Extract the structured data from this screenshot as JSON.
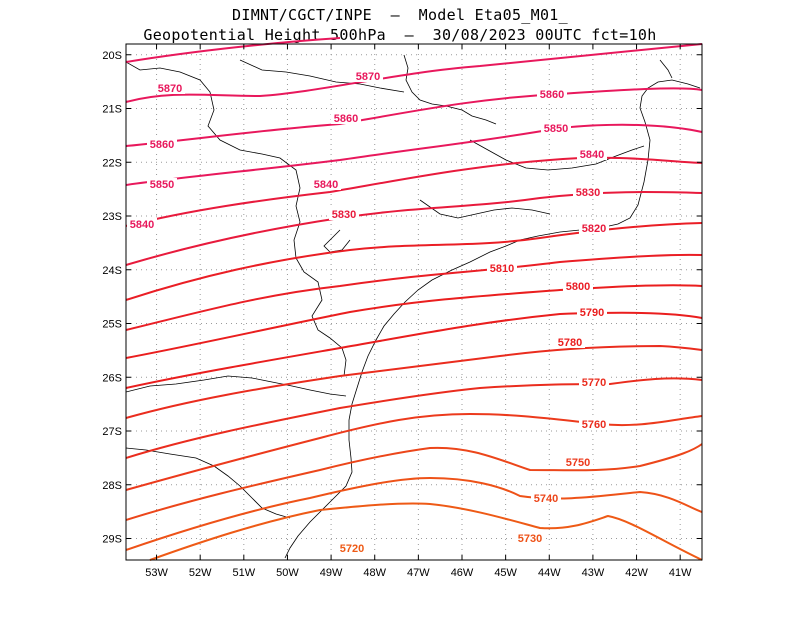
{
  "header": {
    "line1": "DIMNT/CGCT/INPE  –  Model Eta05_M01_",
    "line2": "Geopotential Height 500hPa  –  30/08/2023 00UTC fct=10h"
  },
  "map": {
    "lon_range": [
      -53.7,
      -40.5
    ],
    "lat_range": [
      -29.4,
      -19.8
    ],
    "lat_ticks": [
      "20S",
      "21S",
      "22S",
      "23S",
      "24S",
      "25S",
      "26S",
      "27S",
      "28S",
      "29S"
    ],
    "lon_ticks": [
      "53W",
      "52W",
      "51W",
      "50W",
      "49W",
      "48W",
      "47W",
      "46W",
      "45W",
      "44W",
      "43W",
      "42W",
      "41W"
    ],
    "grid": "dotted",
    "contour_interval": 10,
    "contours": [
      {
        "level": "5870",
        "color": "#e8185c",
        "labels": [
          "5870",
          "5870"
        ]
      },
      {
        "level": "5860",
        "color": "#e8185c",
        "labels": [
          "5860",
          "5860",
          "5860"
        ]
      },
      {
        "level": "5850",
        "color": "#e8185c",
        "labels": [
          "5850",
          "5850"
        ]
      },
      {
        "level": "5840",
        "color": "#e8185c",
        "labels": [
          "5840",
          "5840",
          "5840"
        ]
      },
      {
        "level": "5830",
        "color": "#e81a3c",
        "labels": [
          "5830",
          "5830"
        ]
      },
      {
        "level": "5820",
        "color": "#e81a3c",
        "labels": [
          "5820"
        ]
      },
      {
        "level": "5810",
        "color": "#ea1e25",
        "labels": [
          "5810"
        ]
      },
      {
        "level": "5800",
        "color": "#ea1e25",
        "labels": [
          "5800"
        ]
      },
      {
        "level": "5790",
        "color": "#ea1e1e",
        "labels": [
          "5790"
        ]
      },
      {
        "level": "5780",
        "color": "#ea1e1e",
        "labels": [
          "5780"
        ]
      },
      {
        "level": "5770",
        "color": "#ea2c1e",
        "labels": [
          "5770"
        ]
      },
      {
        "level": "5760",
        "color": "#ea2c1e",
        "labels": [
          "5760"
        ]
      },
      {
        "level": "5750",
        "color": "#ec3a1c",
        "labels": [
          "5750"
        ]
      },
      {
        "level": "5740",
        "color": "#ec461a",
        "labels": [
          "5740"
        ]
      },
      {
        "level": "5730",
        "color": "#ee5218",
        "labels": [
          "5730"
        ]
      },
      {
        "level": "5720",
        "color": "#ee5a16",
        "labels": [
          "5720"
        ]
      }
    ]
  }
}
